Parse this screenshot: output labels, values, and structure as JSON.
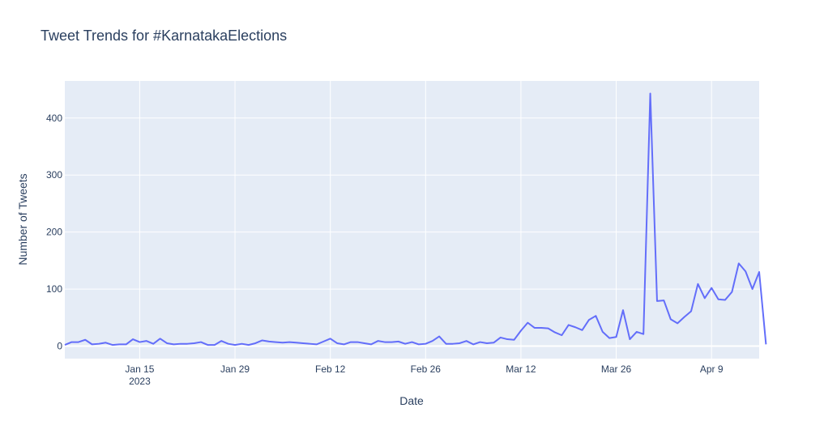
{
  "chart_data": {
    "type": "line",
    "title": "Tweet Trends for #KarnatakaElections",
    "xlabel": "Date",
    "ylabel": "Number of Tweets",
    "x_start": "2023-01-04",
    "x_range": [
      "2023-01-04",
      "2023-04-16"
    ],
    "ylim": [
      -22,
      465
    ],
    "yticks": [
      0,
      100,
      200,
      300,
      400
    ],
    "xticks": [
      {
        "date": "2023-01-15",
        "label": "Jan 15",
        "sublabel": "2023"
      },
      {
        "date": "2023-01-29",
        "label": "Jan 29",
        "sublabel": ""
      },
      {
        "date": "2023-02-12",
        "label": "Feb 12",
        "sublabel": ""
      },
      {
        "date": "2023-02-26",
        "label": "Feb 26",
        "sublabel": ""
      },
      {
        "date": "2023-03-12",
        "label": "Mar 12",
        "sublabel": ""
      },
      {
        "date": "2023-03-26",
        "label": "Mar 26",
        "sublabel": ""
      },
      {
        "date": "2023-04-09",
        "label": "Apr 9",
        "sublabel": ""
      }
    ],
    "grid": true,
    "legend": "none",
    "colors": {
      "line": "#636efa",
      "plot_bg": "#e5ecf6",
      "grid": "#ffffff",
      "text": "#2a3f5f"
    },
    "series": [
      {
        "values": [
          2,
          7,
          7,
          11,
          3,
          4,
          6,
          2,
          3,
          3,
          12,
          7,
          9,
          4,
          13,
          5,
          3,
          4,
          4,
          5,
          7,
          2,
          2,
          9,
          4,
          2,
          4,
          2,
          5,
          10,
          8,
          7,
          6,
          7,
          6,
          5,
          4,
          3,
          8,
          13,
          5,
          3,
          7,
          7,
          5,
          3,
          9,
          7,
          7,
          8,
          4,
          7,
          3,
          4,
          9,
          17,
          4,
          4,
          5,
          9,
          3,
          7,
          5,
          6,
          15,
          12,
          11,
          27,
          41,
          32,
          32,
          31,
          24,
          19,
          37,
          33,
          28,
          46,
          53,
          25,
          14,
          16,
          63,
          12,
          25,
          21,
          443,
          79,
          80,
          47,
          40,
          51,
          61,
          109,
          84,
          102,
          82,
          81,
          95,
          145,
          131,
          100,
          130,
          3
        ]
      }
    ]
  }
}
